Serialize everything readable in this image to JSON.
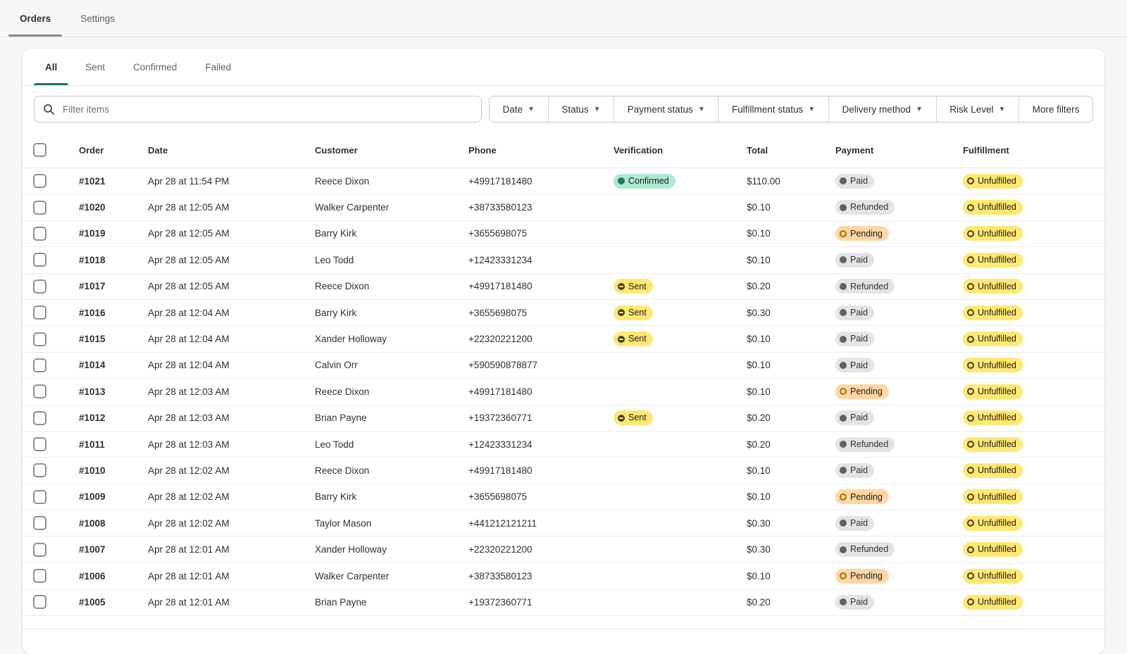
{
  "page": {
    "tabs": [
      {
        "label": "Orders",
        "active": true
      },
      {
        "label": "Settings",
        "active": false
      }
    ]
  },
  "card": {
    "tabs": [
      {
        "label": "All",
        "active": true
      },
      {
        "label": "Sent",
        "active": false
      },
      {
        "label": "Confirmed",
        "active": false
      },
      {
        "label": "Failed",
        "active": false
      }
    ],
    "filters": {
      "search_placeholder": "Filter items",
      "buttons": [
        {
          "label": "Date",
          "caret": true
        },
        {
          "label": "Status",
          "caret": true
        },
        {
          "label": "Payment status",
          "caret": true
        },
        {
          "label": "Fulfillment status",
          "caret": true
        },
        {
          "label": "Delivery method",
          "caret": true
        },
        {
          "label": "Risk Level",
          "caret": true
        },
        {
          "label": "More filters",
          "caret": false
        }
      ]
    },
    "table": {
      "columns": [
        "Order",
        "Date",
        "Customer",
        "Phone",
        "Verification",
        "Total",
        "Payment",
        "Fulfillment"
      ],
      "badge_kinds": {
        "Confirmed": "success",
        "Sent": "sent",
        "Paid": "neutral",
        "Refunded": "neutral",
        "Pending": "pending",
        "Unfulfilled": "attention"
      },
      "rows": [
        {
          "order": "#1021",
          "date": "Apr 28 at 11:54 PM",
          "customer": "Reece Dixon",
          "phone": "+49917181480",
          "verification": "Confirmed",
          "total": "$110.00",
          "payment": "Paid",
          "fulfillment": "Unfulfilled"
        },
        {
          "order": "#1020",
          "date": "Apr 28 at 12:05 AM",
          "customer": "Walker Carpenter",
          "phone": "+38733580123",
          "verification": "",
          "total": "$0.10",
          "payment": "Refunded",
          "fulfillment": "Unfulfilled"
        },
        {
          "order": "#1019",
          "date": "Apr 28 at 12:05 AM",
          "customer": "Barry Kirk",
          "phone": "+3655698075",
          "verification": "",
          "total": "$0.10",
          "payment": "Pending",
          "fulfillment": "Unfulfilled"
        },
        {
          "order": "#1018",
          "date": "Apr 28 at 12:05 AM",
          "customer": "Leo Todd",
          "phone": "+12423331234",
          "verification": "",
          "total": "$0.10",
          "payment": "Paid",
          "fulfillment": "Unfulfilled"
        },
        {
          "order": "#1017",
          "date": "Apr 28 at 12:05 AM",
          "customer": "Reece Dixon",
          "phone": "+49917181480",
          "verification": "Sent",
          "total": "$0.20",
          "payment": "Refunded",
          "fulfillment": "Unfulfilled"
        },
        {
          "order": "#1016",
          "date": "Apr 28 at 12:04 AM",
          "customer": "Barry Kirk",
          "phone": "+3655698075",
          "verification": "Sent",
          "total": "$0.30",
          "payment": "Paid",
          "fulfillment": "Unfulfilled"
        },
        {
          "order": "#1015",
          "date": "Apr 28 at 12:04 AM",
          "customer": "Xander Holloway",
          "phone": "+22320221200",
          "verification": "Sent",
          "total": "$0.10",
          "payment": "Paid",
          "fulfillment": "Unfulfilled"
        },
        {
          "order": "#1014",
          "date": "Apr 28 at 12:04 AM",
          "customer": "Calvin Orr",
          "phone": "+590590878877",
          "verification": "",
          "total": "$0.10",
          "payment": "Paid",
          "fulfillment": "Unfulfilled"
        },
        {
          "order": "#1013",
          "date": "Apr 28 at 12:03 AM",
          "customer": "Reece Dixon",
          "phone": "+49917181480",
          "verification": "",
          "total": "$0.10",
          "payment": "Pending",
          "fulfillment": "Unfulfilled"
        },
        {
          "order": "#1012",
          "date": "Apr 28 at 12:03 AM",
          "customer": "Brian Payne",
          "phone": "+19372360771",
          "verification": "Sent",
          "total": "$0.20",
          "payment": "Paid",
          "fulfillment": "Unfulfilled"
        },
        {
          "order": "#1011",
          "date": "Apr 28 at 12:03 AM",
          "customer": "Leo Todd",
          "phone": "+12423331234",
          "verification": "",
          "total": "$0.20",
          "payment": "Refunded",
          "fulfillment": "Unfulfilled"
        },
        {
          "order": "#1010",
          "date": "Apr 28 at 12:02 AM",
          "customer": "Reece Dixon",
          "phone": "+49917181480",
          "verification": "",
          "total": "$0.10",
          "payment": "Paid",
          "fulfillment": "Unfulfilled"
        },
        {
          "order": "#1009",
          "date": "Apr 28 at 12:02 AM",
          "customer": "Barry Kirk",
          "phone": "+3655698075",
          "verification": "",
          "total": "$0.10",
          "payment": "Pending",
          "fulfillment": "Unfulfilled"
        },
        {
          "order": "#1008",
          "date": "Apr 28 at 12:02 AM",
          "customer": "Taylor Mason",
          "phone": "+441212121211",
          "verification": "",
          "total": "$0.30",
          "payment": "Paid",
          "fulfillment": "Unfulfilled"
        },
        {
          "order": "#1007",
          "date": "Apr 28 at 12:01 AM",
          "customer": "Xander Holloway",
          "phone": "+22320221200",
          "verification": "",
          "total": "$0.30",
          "payment": "Refunded",
          "fulfillment": "Unfulfilled"
        },
        {
          "order": "#1006",
          "date": "Apr 28 at 12:01 AM",
          "customer": "Walker Carpenter",
          "phone": "+38733580123",
          "verification": "",
          "total": "$0.10",
          "payment": "Pending",
          "fulfillment": "Unfulfilled"
        },
        {
          "order": "#1005",
          "date": "Apr 28 at 12:01 AM",
          "customer": "Brian Payne",
          "phone": "+19372360771",
          "verification": "",
          "total": "$0.20",
          "payment": "Paid",
          "fulfillment": "Unfulfilled"
        }
      ]
    }
  },
  "colors": {
    "page_background": "#f7f7f7",
    "card_background": "#ffffff",
    "active_tab_underline_top": "#8a8a8a",
    "active_tab_underline_card": "#1a7a5f",
    "badge_success_bg": "#aee9d0",
    "badge_success_dot": "#1f7a5f",
    "badge_neutral_bg": "#e3e4e5",
    "badge_neutral_dot": "#616161",
    "badge_yellow_bg": "#ffe873",
    "badge_pending_bg": "#ffd6a4",
    "badge_pending_ring": "#9c7400",
    "badge_attention_ring": "#45401f"
  }
}
